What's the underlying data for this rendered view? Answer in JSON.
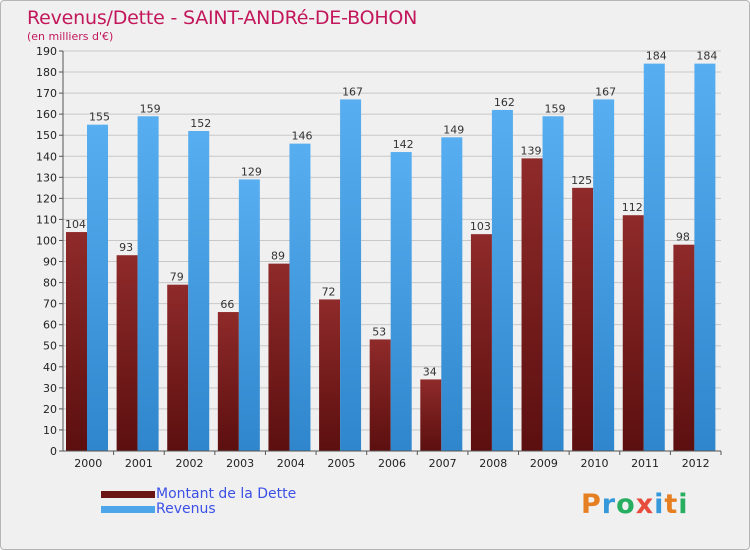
{
  "header": {
    "title": "Revenus/Dette - SAINT-ANDRé-DE-BOHON",
    "subtitle": "(en milliers d'€)"
  },
  "legend": {
    "items": [
      {
        "label": "Montant de la Dette",
        "color": "#7a1c1c"
      },
      {
        "label": "Revenus",
        "color": "#4da6ea"
      }
    ]
  },
  "logo": {
    "text": "Proxiti",
    "colors": [
      "#e67e22",
      "#3498db",
      "#27ae60",
      "#e74c3c",
      "#3498db",
      "#e67e22",
      "#27ae60"
    ]
  },
  "chart_data": {
    "type": "bar",
    "title": "Revenus/Dette - SAINT-ANDRé-DE-BOHON",
    "subtitle": "(en milliers d'€)",
    "categories": [
      "2000",
      "2001",
      "2002",
      "2003",
      "2004",
      "2005",
      "2006",
      "2007",
      "2008",
      "2009",
      "2010",
      "2011",
      "2012"
    ],
    "series": [
      {
        "name": "Montant de la Dette",
        "values": [
          104,
          93,
          79,
          66,
          89,
          72,
          53,
          34,
          103,
          139,
          125,
          112,
          98
        ],
        "color": "#7a1c1c"
      },
      {
        "name": "Revenus",
        "values": [
          155,
          159,
          152,
          129,
          146,
          167,
          142,
          149,
          162,
          159,
          167,
          184,
          184
        ],
        "color": "#4da6ea"
      }
    ],
    "ylim": [
      0,
      190
    ],
    "ytick_step": 10,
    "grid": true,
    "legend_position": "bottom-left"
  }
}
